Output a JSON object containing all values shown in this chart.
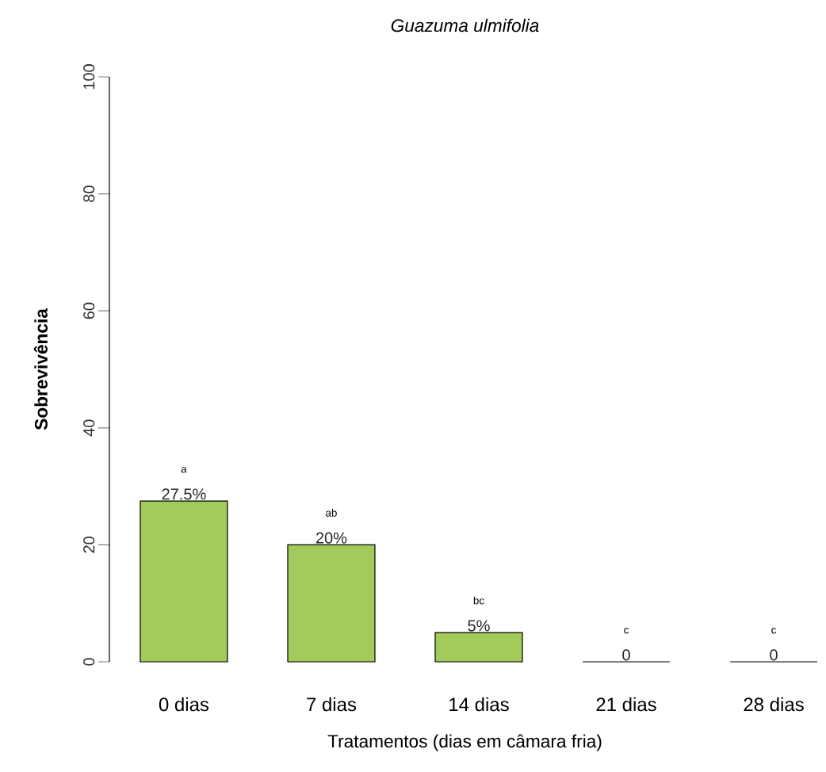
{
  "chart_data": {
    "type": "bar",
    "title": "Guazuma ulmifolia",
    "xlabel": "Tratamentos (dias em câmara fria)",
    "ylabel": "Sobrevivência",
    "categories": [
      "0 dias",
      "7 dias",
      "14 dias",
      "21 dias",
      "28 dias"
    ],
    "values": [
      27.5,
      20,
      5,
      0,
      0
    ],
    "colors": [
      "#a2cb5c",
      "#a2cb5c",
      "#a2cb5c",
      "#000000",
      "#000000"
    ],
    "value_labels": [
      "27.5%",
      "20%",
      "5%",
      "0",
      "0"
    ],
    "ylim": [
      0,
      100
    ],
    "yticks": [
      0,
      20,
      40,
      60,
      80,
      100
    ],
    "annotations": [
      {
        "text": "a",
        "x": "0 dias",
        "y": 27.5
      },
      {
        "text": "ab",
        "x": "7 dias",
        "y": 20
      },
      {
        "text": "bc",
        "x": "14 dias",
        "y": 5
      },
      {
        "text": "c",
        "x": "21 dias",
        "y": 0
      },
      {
        "text": "c",
        "x": "28 dias",
        "y": 0
      }
    ]
  }
}
